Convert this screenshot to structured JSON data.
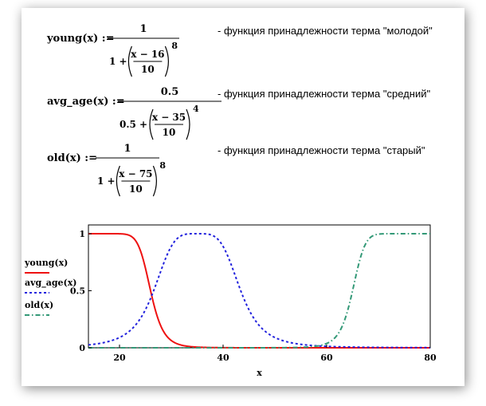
{
  "formulas": [
    {
      "name": "young(x)",
      "numerator": "1",
      "denominator_lead": "1 +",
      "frac_num": "x − 16",
      "frac_den": "10",
      "power": "8",
      "comment": "- функция принадлежности терма \"молодой\""
    },
    {
      "name": "avg_age(x)",
      "numerator": "0.5",
      "denominator_lead": "0.5 +",
      "frac_num": "x − 35",
      "frac_den": "10",
      "power": "4",
      "comment": "- функция принадлежности терма \"средний\""
    },
    {
      "name": "old(x)",
      "numerator": "1",
      "denominator_lead": "1 +",
      "frac_num": "x − 75",
      "frac_den": "10",
      "power": "8",
      "comment": "- функция принадлежности терма \"старый\""
    }
  ],
  "assign_symbol": ":=",
  "chart_data": {
    "type": "line",
    "xlabel": "x",
    "xlim": [
      14,
      80
    ],
    "ylim": [
      0,
      1
    ],
    "x_ticks": [
      "20",
      "40",
      "60",
      "80"
    ],
    "y_ticks": [
      "0",
      "0.5",
      "1"
    ],
    "legend_position": "left",
    "series": [
      {
        "name": "young(x)",
        "color": "#ee1111",
        "style": "solid",
        "function": "young"
      },
      {
        "name": "avg_age(x)",
        "color": "#2222dd",
        "style": "dotted",
        "function": "avg_age"
      },
      {
        "name": "old(x)",
        "color": "#339977",
        "style": "dash-dot",
        "function": "old"
      }
    ]
  }
}
